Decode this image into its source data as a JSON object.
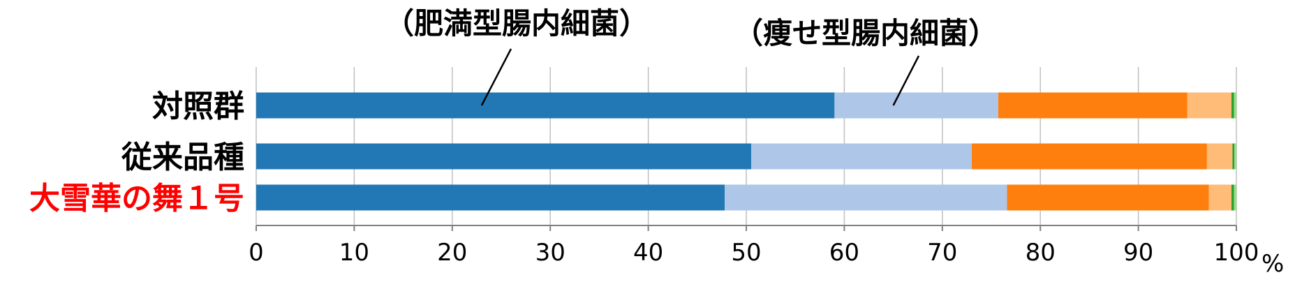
{
  "chart_data": {
    "type": "bar",
    "orientation": "horizontal",
    "stacked": true,
    "categories": [
      "対照群",
      "従来品種",
      "大雪華の舞１号"
    ],
    "category_colors": [
      "#000000",
      "#000000",
      "#ff0000"
    ],
    "series": [
      {
        "values": [
          59.0,
          50.5,
          47.8
        ],
        "color": "#2278b5"
      },
      {
        "values": [
          16.7,
          22.5,
          28.8
        ],
        "color": "#aec7e8"
      },
      {
        "values": [
          19.3,
          24.0,
          20.6
        ],
        "color": "#ff7f0e"
      },
      {
        "values": [
          4.5,
          2.6,
          2.3
        ],
        "color": "#ffbb78"
      },
      {
        "values": [
          0.25,
          0.2,
          0.25
        ],
        "color": "#2ca02c"
      },
      {
        "values": [
          0.25,
          0.2,
          0.25
        ],
        "color": "#98df8a"
      }
    ],
    "x_ticks": [
      0,
      10,
      20,
      30,
      40,
      50,
      60,
      70,
      80,
      90,
      100
    ],
    "x_tick_labels": [
      "0",
      "10",
      "20",
      "30",
      "40",
      "50",
      "60",
      "70",
      "80",
      "90",
      "100"
    ],
    "xlim": [
      0,
      100
    ],
    "x_unit": "%",
    "grid": true,
    "annotations": [
      {
        "text": "（肥満型腸内細菌）",
        "point_x": 23,
        "point_category": "対照群"
      },
      {
        "text": "（痩せ型腸内細菌）",
        "point_x": 65,
        "point_category": "対照群"
      }
    ]
  }
}
